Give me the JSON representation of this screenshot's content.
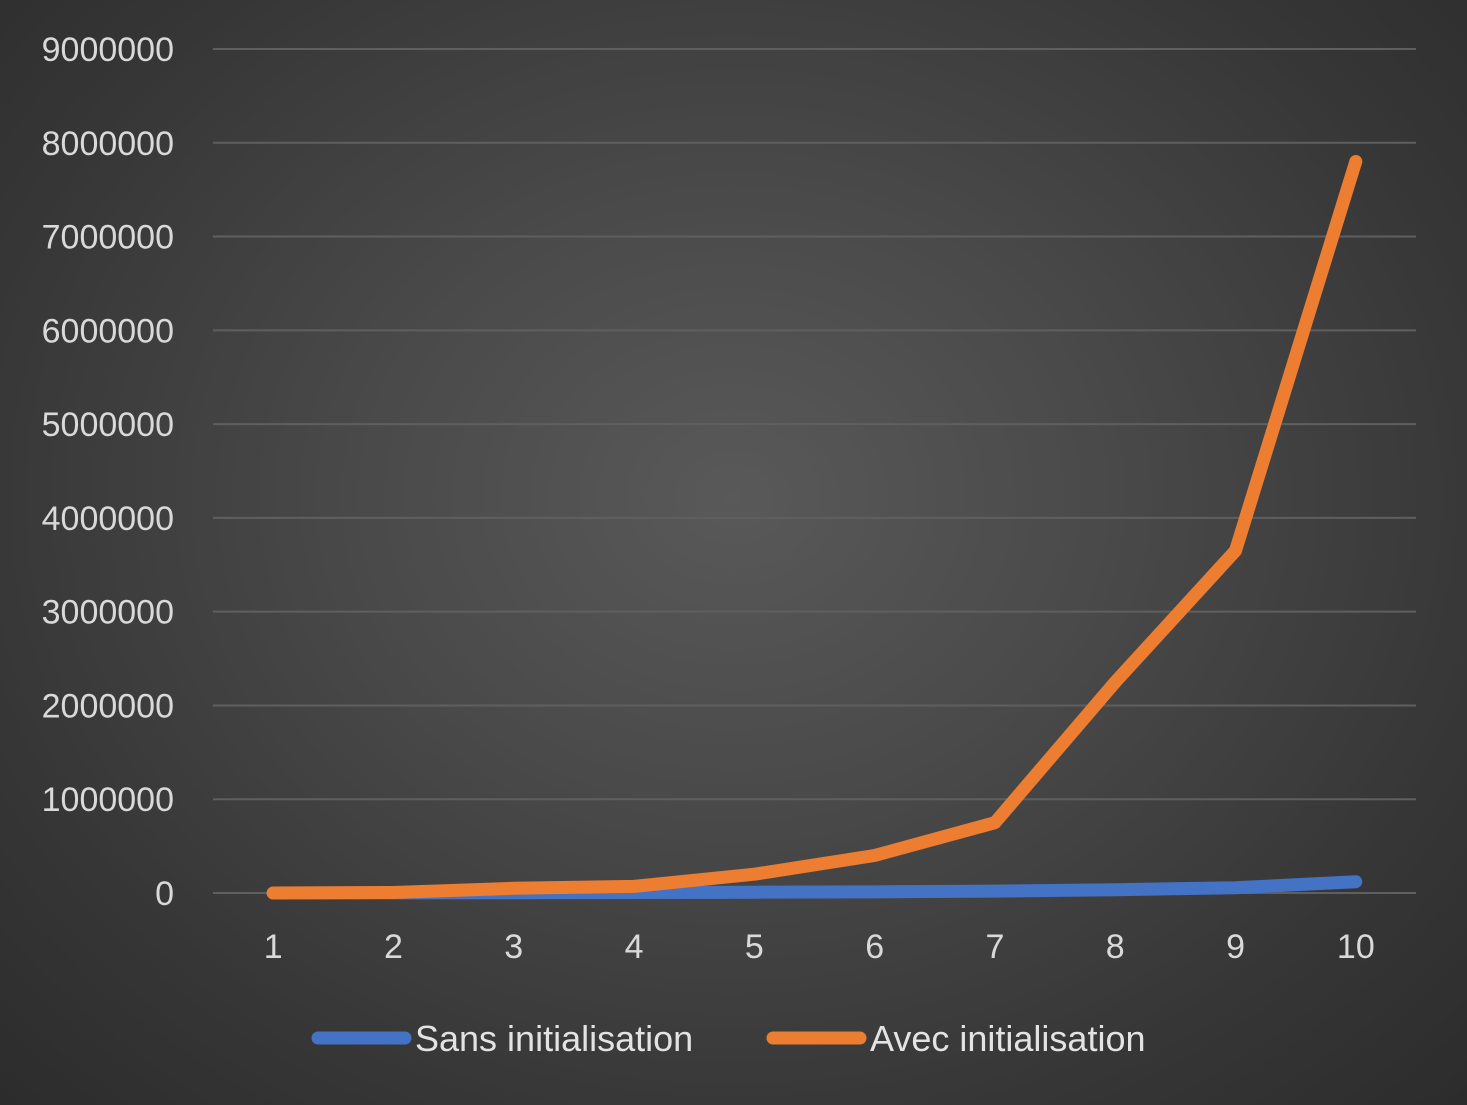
{
  "chart_data": {
    "type": "line",
    "title": "",
    "xlabel": "",
    "ylabel": "",
    "categories": [
      "1",
      "2",
      "3",
      "4",
      "5",
      "6",
      "7",
      "8",
      "9",
      "10"
    ],
    "yticks": [
      "0",
      "1000000",
      "2000000",
      "3000000",
      "4000000",
      "5000000",
      "6000000",
      "7000000",
      "8000000",
      "9000000"
    ],
    "ylim": [
      0,
      9000000
    ],
    "grid": true,
    "legend": "bottom",
    "series": [
      {
        "name": "Sans initialisation",
        "color": "#4472c4",
        "values": [
          0,
          1000,
          3000,
          5000,
          8000,
          12000,
          20000,
          35000,
          55000,
          120000
        ]
      },
      {
        "name": "Avec initialisation",
        "color": "#ed7d31",
        "values": [
          0,
          5000,
          50000,
          70000,
          200000,
          400000,
          750000,
          2250000,
          3650000,
          7800000
        ]
      }
    ]
  }
}
